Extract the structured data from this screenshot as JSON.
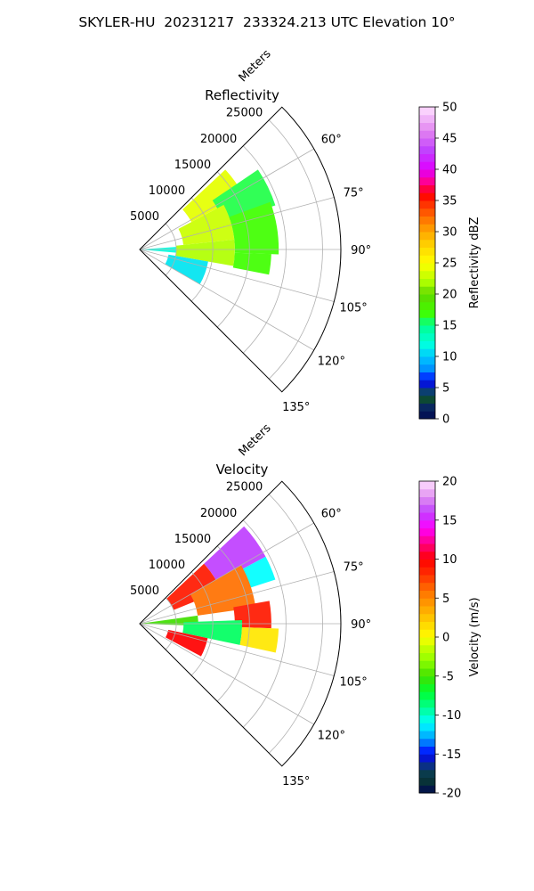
{
  "figure": {
    "title": "SKYLER-HU  20231217  233324.213 UTC Elevation 10°"
  },
  "chart_data": [
    {
      "type": "heatmap",
      "projection": "polar-sector",
      "title": "Reflectivity",
      "radial_label": "Meters",
      "radial_ticks": [
        "5000",
        "10000",
        "15000",
        "20000",
        "25000"
      ],
      "radial_tick_values": [
        5000,
        10000,
        15000,
        20000,
        25000
      ],
      "radial_max": 27500,
      "angle_range_deg": [
        45,
        135
      ],
      "angle_ticks": [
        "60°",
        "75°",
        "90°",
        "105°",
        "120°",
        "135°"
      ],
      "angle_tick_values": [
        60,
        75,
        90,
        105,
        120,
        135
      ],
      "grid": true,
      "colorbar": {
        "label": "Reflectivity dBZ",
        "range": [
          0,
          50
        ],
        "ticks": [
          "0",
          "5",
          "10",
          "15",
          "20",
          "25",
          "30",
          "35",
          "40",
          "45",
          "50"
        ]
      },
      "regions": [
        {
          "az": [
            47,
            62
          ],
          "range": [
            8000,
            16000
          ],
          "value": 24
        },
        {
          "az": [
            56,
            72
          ],
          "range": [
            12000,
            19500
          ],
          "value": 16
        },
        {
          "az": [
            62,
            84
          ],
          "range": [
            6000,
            13000
          ],
          "value": 23
        },
        {
          "az": [
            70,
            92
          ],
          "range": [
            13000,
            19000
          ],
          "value": 17
        },
        {
          "az": [
            84,
            100
          ],
          "range": [
            5000,
            13000
          ],
          "value": 22
        },
        {
          "az": [
            92,
            101
          ],
          "range": [
            13000,
            18000
          ],
          "value": 17
        },
        {
          "az": [
            86,
            95
          ],
          "range": [
            0,
            5000
          ],
          "value": 12
        },
        {
          "az": [
            100,
            120
          ],
          "range": [
            4000,
            9500
          ],
          "value": 11
        }
      ]
    },
    {
      "type": "heatmap",
      "projection": "polar-sector",
      "title": "Velocity",
      "radial_label": "Meters",
      "radial_ticks": [
        "5000",
        "10000",
        "15000",
        "20000",
        "25000"
      ],
      "radial_tick_values": [
        5000,
        10000,
        15000,
        20000,
        25000
      ],
      "radial_max": 27500,
      "angle_range_deg": [
        45,
        135
      ],
      "angle_ticks": [
        "60°",
        "75°",
        "90°",
        "105°",
        "120°",
        "135°"
      ],
      "angle_tick_values": [
        60,
        75,
        90,
        105,
        120,
        135
      ],
      "grid": true,
      "colorbar": {
        "label": "Velocity (m/s)",
        "range": [
          -20,
          20
        ],
        "ticks": [
          "-20",
          "-15",
          "-10",
          "-5",
          "0",
          "5",
          "10",
          "15",
          "20"
        ]
      },
      "regions": [
        {
          "az": [
            47,
            62
          ],
          "range": [
            12000,
            19500
          ],
          "value": 16
        },
        {
          "az": [
            47,
            68
          ],
          "range": [
            5000,
            12000
          ],
          "value": 9
        },
        {
          "az": [
            62,
            72
          ],
          "range": [
            15000,
            19500
          ],
          "value": -11
        },
        {
          "az": [
            60,
            82
          ],
          "range": [
            8000,
            16000
          ],
          "value": 6
        },
        {
          "az": [
            80,
            92
          ],
          "range": [
            13000,
            18000
          ],
          "value": 9
        },
        {
          "az": [
            82,
            92
          ],
          "range": [
            0,
            8000
          ],
          "value": -5
        },
        {
          "az": [
            88,
            102
          ],
          "range": [
            6000,
            14000
          ],
          "value": -8
        },
        {
          "az": [
            92,
            102
          ],
          "range": [
            14000,
            19000
          ],
          "value": 1
        },
        {
          "az": [
            102,
            118
          ],
          "range": [
            4000,
            9500
          ],
          "value": 10
        }
      ]
    }
  ]
}
